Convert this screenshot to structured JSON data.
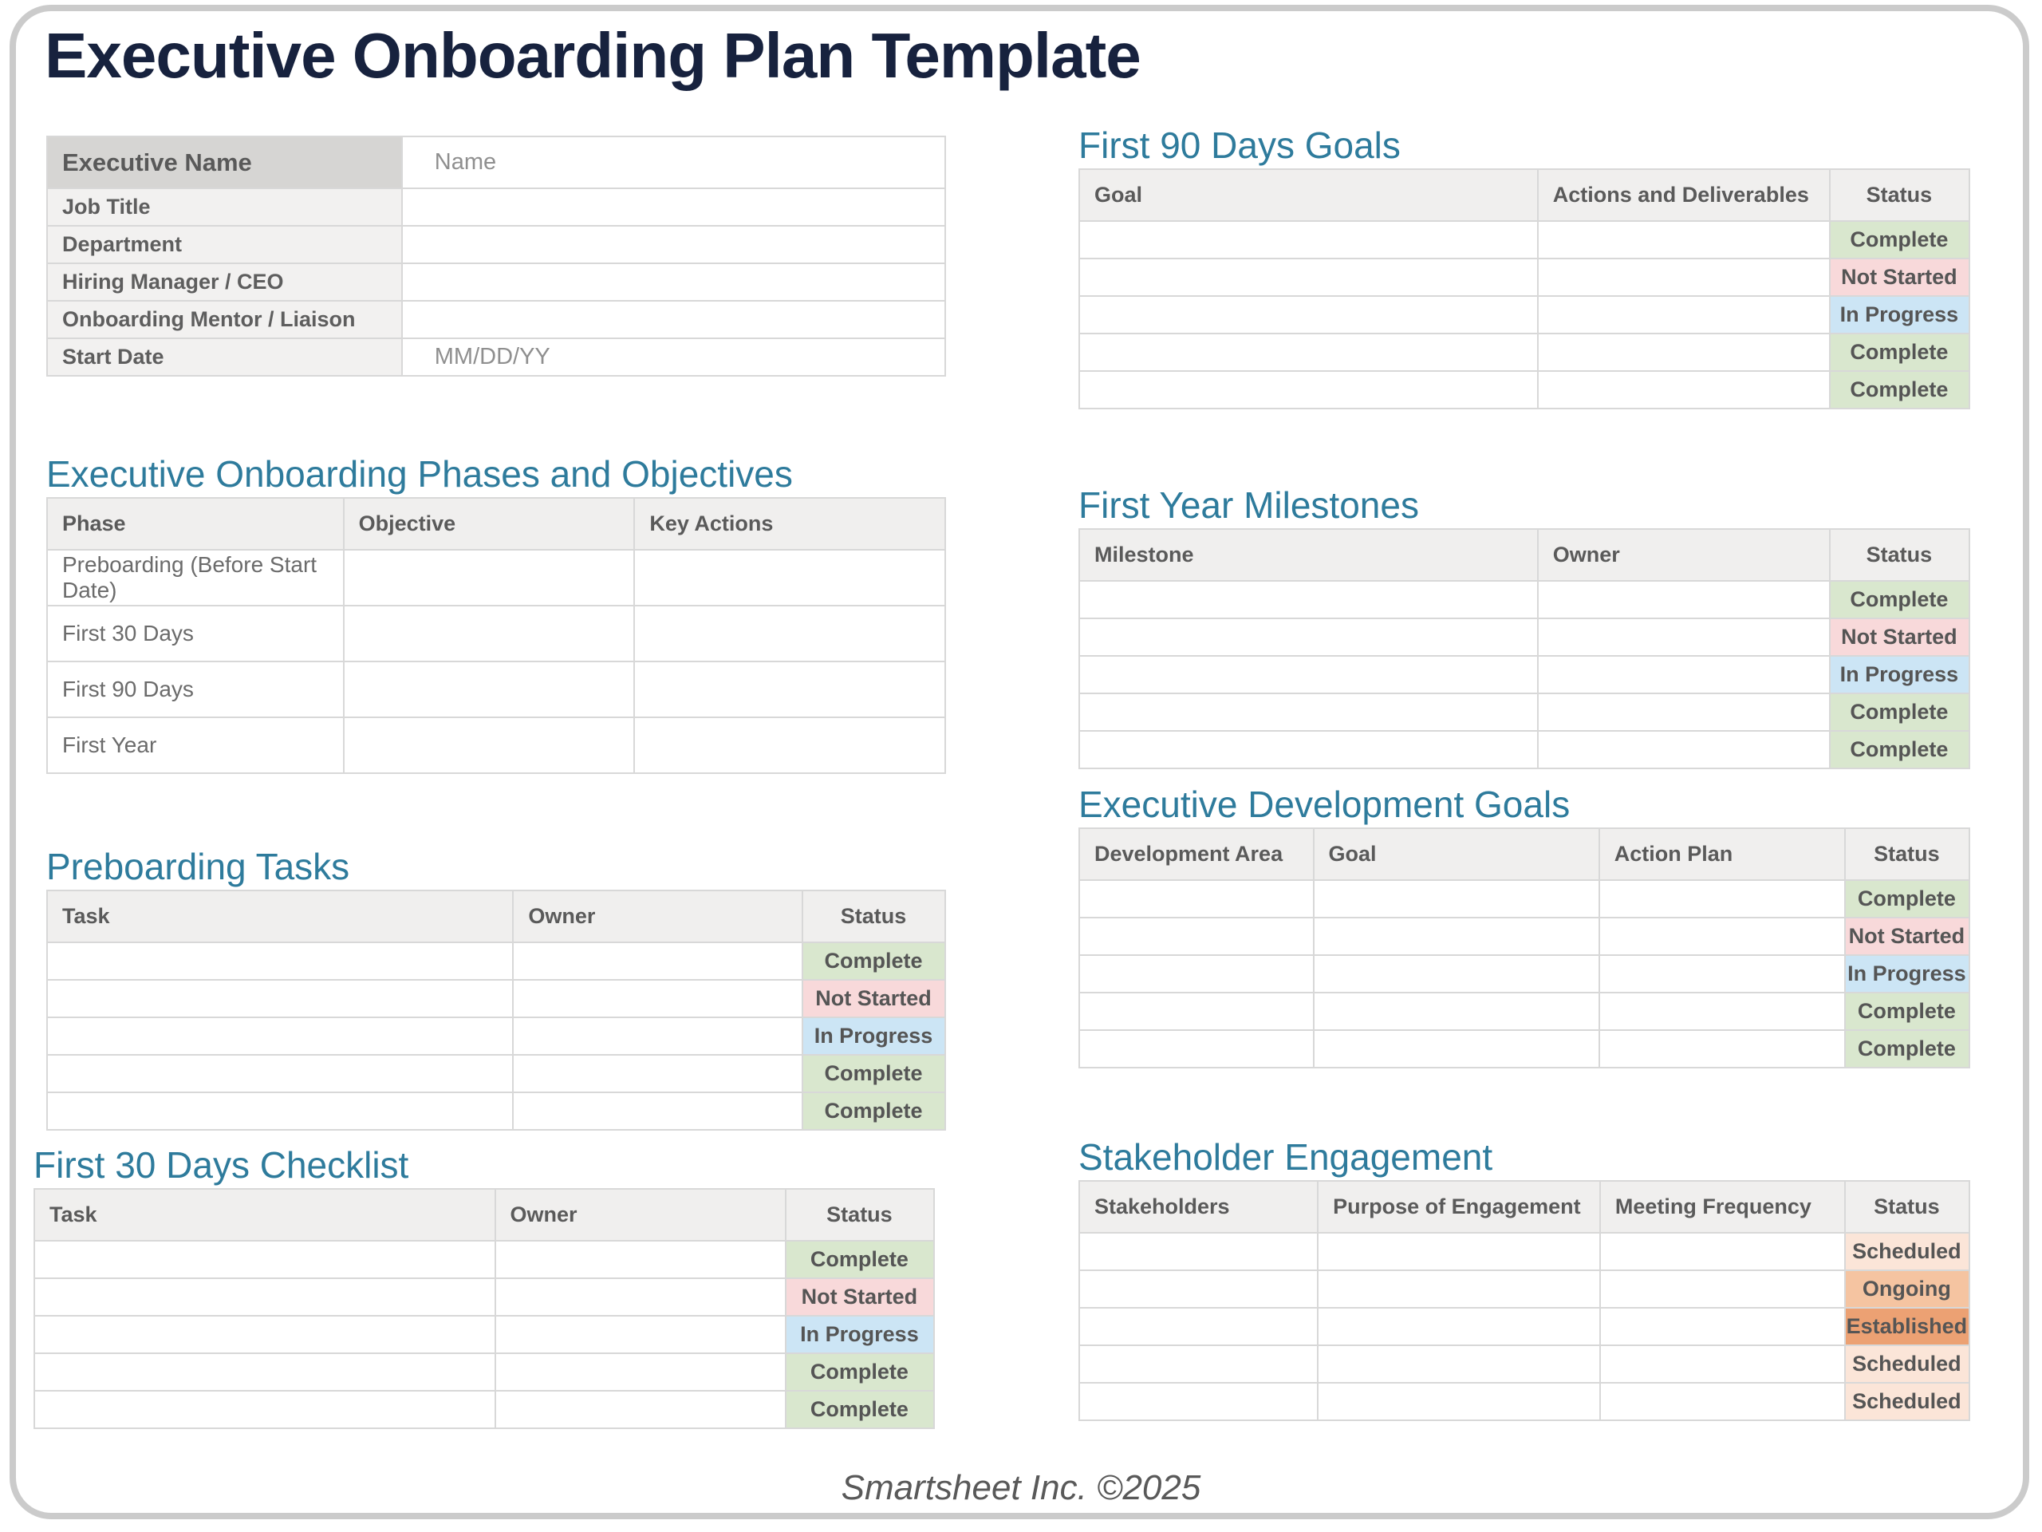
{
  "title": "Executive Onboarding Plan Template",
  "footer": "Smartsheet Inc. ©2025",
  "colors": {
    "title_text": "#17223e",
    "heading_text": "#2e7b9c",
    "status": {
      "Complete": "#d9e7ce",
      "Not Started": "#f8d9da",
      "In Progress": "#cce5f5",
      "Scheduled": "#fbe5d8",
      "Ongoing": "#f5c4a1",
      "Established": "#eca173"
    }
  },
  "info_table": {
    "header_label": "Executive Name",
    "header_placeholder": "Name",
    "rows": [
      {
        "label": "Job Title",
        "value": ""
      },
      {
        "label": "Department",
        "value": ""
      },
      {
        "label": "Hiring Manager / CEO",
        "value": ""
      },
      {
        "label": "Onboarding Mentor / Liaison",
        "value": ""
      },
      {
        "label": "Start Date",
        "value": "MM/DD/YY"
      }
    ]
  },
  "sections": [
    {
      "id": "phases",
      "heading": "Executive Onboarding Phases and Objectives",
      "columns": [
        "Phase",
        "Objective",
        "Key Actions"
      ],
      "has_status_col": false,
      "rows": [
        [
          "Preboarding (Before Start Date)",
          "",
          ""
        ],
        [
          "First 30 Days",
          "",
          ""
        ],
        [
          "First 90 Days",
          "",
          ""
        ],
        [
          "First Year",
          "",
          ""
        ]
      ]
    },
    {
      "id": "preboarding",
      "heading": "Preboarding Tasks",
      "columns": [
        "Task",
        "Owner",
        "Status"
      ],
      "has_status_col": true,
      "rows": [
        [
          "",
          "",
          "Complete"
        ],
        [
          "",
          "",
          "Not Started"
        ],
        [
          "",
          "",
          "In Progress"
        ],
        [
          "",
          "",
          "Complete"
        ],
        [
          "",
          "",
          "Complete"
        ]
      ]
    },
    {
      "id": "first30",
      "heading": "First 30 Days Checklist",
      "columns": [
        "Task",
        "Owner",
        "Status"
      ],
      "has_status_col": true,
      "rows": [
        [
          "",
          "",
          "Complete"
        ],
        [
          "",
          "",
          "Not Started"
        ],
        [
          "",
          "",
          "In Progress"
        ],
        [
          "",
          "",
          "Complete"
        ],
        [
          "",
          "",
          "Complete"
        ]
      ]
    },
    {
      "id": "first90",
      "heading": "First 90 Days Goals",
      "columns": [
        "Goal",
        "Actions and Deliverables",
        "Status"
      ],
      "has_status_col": true,
      "rows": [
        [
          "",
          "",
          "Complete"
        ],
        [
          "",
          "",
          "Not Started"
        ],
        [
          "",
          "",
          "In Progress"
        ],
        [
          "",
          "",
          "Complete"
        ],
        [
          "",
          "",
          "Complete"
        ]
      ]
    },
    {
      "id": "milestones",
      "heading": "First Year Milestones",
      "columns": [
        "Milestone",
        "Owner",
        "Status"
      ],
      "has_status_col": true,
      "rows": [
        [
          "",
          "",
          "Complete"
        ],
        [
          "",
          "",
          "Not Started"
        ],
        [
          "",
          "",
          "In Progress"
        ],
        [
          "",
          "",
          "Complete"
        ],
        [
          "",
          "",
          "Complete"
        ]
      ]
    },
    {
      "id": "devgoals",
      "heading": "Executive Development Goals",
      "columns": [
        "Development Area",
        "Goal",
        "Action Plan",
        "Status"
      ],
      "has_status_col": true,
      "rows": [
        [
          "",
          "",
          "",
          "Complete"
        ],
        [
          "",
          "",
          "",
          "Not Started"
        ],
        [
          "",
          "",
          "",
          "In Progress"
        ],
        [
          "",
          "",
          "",
          "Complete"
        ],
        [
          "",
          "",
          "",
          "Complete"
        ]
      ]
    },
    {
      "id": "stakeholder",
      "heading": "Stakeholder Engagement",
      "columns": [
        "Stakeholders",
        "Purpose of Engagement",
        "Meeting Frequency",
        "Status"
      ],
      "has_status_col": true,
      "rows": [
        [
          "",
          "",
          "",
          "Scheduled"
        ],
        [
          "",
          "",
          "",
          "Ongoing"
        ],
        [
          "",
          "",
          "",
          "Established"
        ],
        [
          "",
          "",
          "",
          "Scheduled"
        ],
        [
          "",
          "",
          "",
          "Scheduled"
        ]
      ]
    }
  ]
}
